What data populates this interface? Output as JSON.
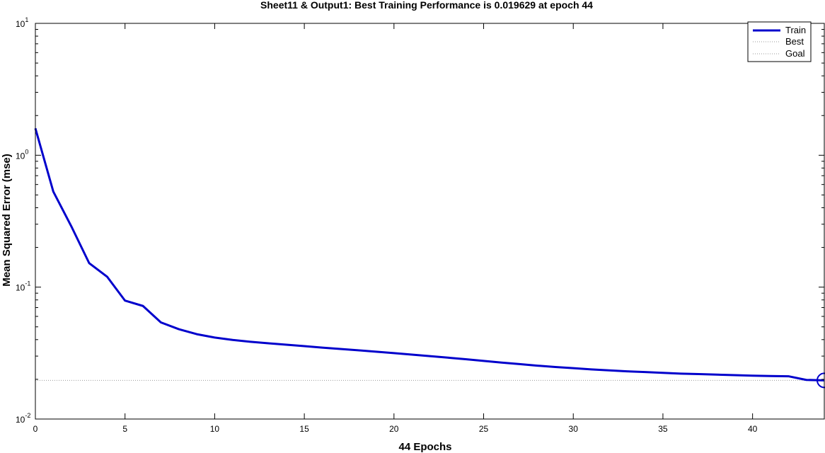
{
  "chart_data": {
    "type": "line",
    "title": "Sheet11 & Output1: Best Training Performance is 0.019629 at epoch 44",
    "xlabel": "44 Epochs",
    "ylabel": "Mean Squared Error  (mse)",
    "xlim": [
      0,
      44
    ],
    "ylim": [
      0.01,
      10
    ],
    "yscale": "log",
    "grid": false,
    "legend": "top-right",
    "x_ticks": [
      0,
      5,
      10,
      15,
      20,
      25,
      30,
      35,
      40
    ],
    "y_ticks": [
      {
        "value": 10,
        "base": "10",
        "exp": "1"
      },
      {
        "value": 1,
        "base": "10",
        "exp": "0"
      },
      {
        "value": 0.1,
        "base": "10",
        "exp": "-1"
      },
      {
        "value": 0.01,
        "base": "10",
        "exp": "-2"
      }
    ],
    "series": [
      {
        "name": "Train",
        "color": "#0000cc",
        "x": [
          0,
          1,
          2,
          3,
          4,
          5,
          6,
          7,
          8,
          9,
          10,
          11,
          12,
          13,
          14,
          15,
          16,
          17,
          18,
          19,
          20,
          21,
          22,
          23,
          24,
          25,
          26,
          27,
          28,
          29,
          30,
          31,
          32,
          33,
          34,
          35,
          36,
          37,
          38,
          39,
          40,
          41,
          42,
          43,
          44
        ],
        "values": [
          1.6,
          0.53,
          0.29,
          0.152,
          0.12,
          0.079,
          0.072,
          0.054,
          0.048,
          0.044,
          0.0415,
          0.0398,
          0.0385,
          0.0375,
          0.0366,
          0.0357,
          0.0348,
          0.034,
          0.0332,
          0.0324,
          0.0316,
          0.0308,
          0.03,
          0.0292,
          0.0284,
          0.0276,
          0.0268,
          0.0261,
          0.0254,
          0.0248,
          0.0243,
          0.0238,
          0.0234,
          0.023,
          0.0227,
          0.0224,
          0.0221,
          0.0219,
          0.0217,
          0.0215,
          0.0213,
          0.0212,
          0.0211,
          0.0198,
          0.019629
        ]
      },
      {
        "name": "Best",
        "color": "#999999",
        "style": "dotted",
        "best_epoch": 44,
        "best_value": 0.019629
      },
      {
        "name": "Goal",
        "color": "#999999",
        "style": "dotted",
        "value": 0
      }
    ]
  }
}
